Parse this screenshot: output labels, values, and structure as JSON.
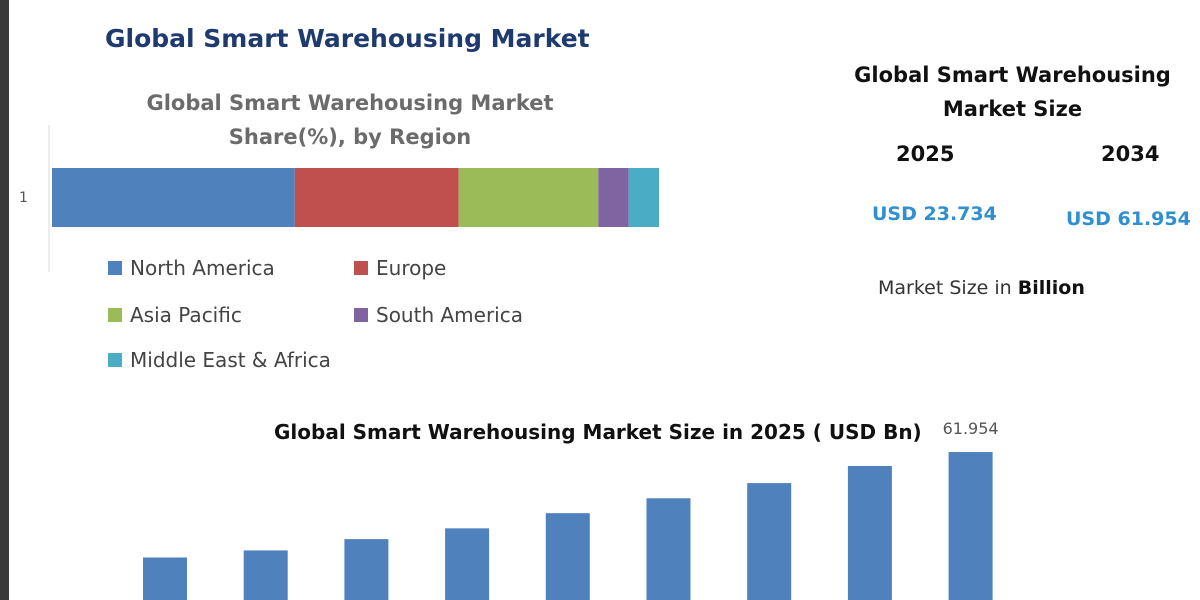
{
  "main_title": "Global Smart Warehousing Market",
  "share_chart": {
    "title_line1": "Global Smart Warehousing Market",
    "title_line2": "Share(%), by Region",
    "category_label": "1"
  },
  "market_size": {
    "title_line1": "Global Smart Warehousing",
    "title_line2": "Market Size",
    "year_start": "2025",
    "year_end": "2034",
    "value_start": "USD 23.734",
    "value_end": "USD 61.954",
    "unit_prefix": "Market Size in",
    "unit_bold": "Billion"
  },
  "bar_chart": {
    "title": "Global Smart Warehousing Market Size in 2025 ( USD Bn)",
    "last_value_label": "61.954"
  },
  "colors": {
    "north_america": "#4f81bd",
    "europe": "#c0504d",
    "asia_pacific": "#9bbb59",
    "south_america": "#8064a2",
    "middle_east_africa": "#4bacc6",
    "bar": "#4f81bd",
    "title_navy": "#1f3a6e",
    "usd_blue": "#2f8fd0"
  },
  "chart_data": [
    {
      "type": "bar",
      "orientation": "horizontal-stacked",
      "title": "Global Smart Warehousing Market Share(%), by Region",
      "categories": [
        "1"
      ],
      "series": [
        {
          "name": "North America",
          "values": [
            40
          ]
        },
        {
          "name": "Europe",
          "values": [
            27
          ]
        },
        {
          "name": "Asia Pacific",
          "values": [
            23
          ]
        },
        {
          "name": "South America",
          "values": [
            5
          ]
        },
        {
          "name": "Middle East & Africa",
          "values": [
            5
          ]
        }
      ],
      "xlim": [
        0,
        100
      ],
      "grid": false,
      "legend": "bottom"
    },
    {
      "type": "bar",
      "title": "Global Smart Warehousing Market Size in 2025 ( USD Bn)",
      "values": [
        23.734,
        26.3,
        30.4,
        34.3,
        39.8,
        45.2,
        50.7,
        56.9,
        61.954
      ],
      "data_labels": [
        "",
        "",
        "",
        "",
        "",
        "",
        "",
        "",
        "61.954"
      ],
      "ylim": [
        0,
        64.5
      ],
      "grid": false
    }
  ]
}
